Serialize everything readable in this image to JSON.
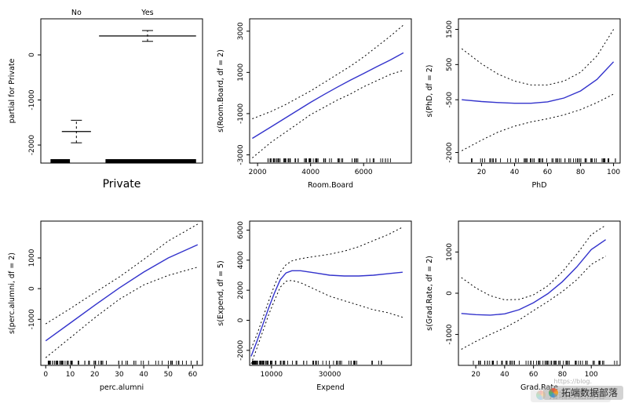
{
  "page": {
    "background": "#ffffff"
  },
  "colors": {
    "fit_line": "#3333cc",
    "band_line": "#000000",
    "axis": "#000000"
  },
  "watermark": {
    "text": "拓端数据部落",
    "text_shadow": "拓端数据部落",
    "url": "https://blog."
  },
  "chart_data": [
    {
      "id": "private",
      "type": "factor",
      "title": "",
      "xlabel": "Private",
      "ylabel": "partial for Private",
      "categories": [
        "No",
        "Yes"
      ],
      "ylim": [
        -2400,
        800
      ],
      "yticks": [
        0,
        -1000,
        -2000
      ],
      "groups": [
        {
          "label": "No",
          "value": -1700,
          "ci_low": -1950,
          "ci_high": -1450,
          "x_center": 0.22,
          "half_width": 0.09
        },
        {
          "label": "Yes",
          "value": 420,
          "ci_low": 300,
          "ci_high": 540,
          "x_center": 0.66,
          "half_width": 0.3
        }
      ],
      "bottom_bars": [
        {
          "x0": 0.06,
          "x1": 0.18
        },
        {
          "x0": 0.4,
          "x1": 0.96
        }
      ]
    },
    {
      "id": "room-board",
      "type": "smooth",
      "xlabel": "Room.Board",
      "ylabel": "s(Room.Board, df = 2)",
      "xlim": [
        1700,
        7800
      ],
      "xticks": [
        2000,
        4000,
        6000
      ],
      "ylim": [
        -3400,
        3600
      ],
      "yticks": [
        -3000,
        -1000,
        1000,
        3000
      ],
      "fit": [
        [
          1800,
          -2200
        ],
        [
          2500,
          -1650
        ],
        [
          3000,
          -1250
        ],
        [
          3500,
          -850
        ],
        [
          4000,
          -450
        ],
        [
          4500,
          -80
        ],
        [
          5000,
          280
        ],
        [
          5500,
          620
        ],
        [
          6000,
          950
        ],
        [
          6500,
          1280
        ],
        [
          7000,
          1600
        ],
        [
          7500,
          1950
        ]
      ],
      "upper": [
        [
          1800,
          -1250
        ],
        [
          2500,
          -900
        ],
        [
          3000,
          -600
        ],
        [
          3500,
          -250
        ],
        [
          4000,
          100
        ],
        [
          4500,
          500
        ],
        [
          5000,
          900
        ],
        [
          5500,
          1300
        ],
        [
          6000,
          1750
        ],
        [
          6500,
          2250
        ],
        [
          7000,
          2750
        ],
        [
          7500,
          3300
        ]
      ],
      "lower": [
        [
          1800,
          -3150
        ],
        [
          2500,
          -2400
        ],
        [
          3000,
          -1950
        ],
        [
          3500,
          -1500
        ],
        [
          4000,
          -1050
        ],
        [
          4500,
          -700
        ],
        [
          5000,
          -350
        ],
        [
          5500,
          -50
        ],
        [
          6000,
          300
        ],
        [
          6500,
          600
        ],
        [
          7000,
          900
        ],
        [
          7500,
          1100
        ]
      ],
      "rug": {
        "min": 2300,
        "max": 7100,
        "count": 75,
        "seed": 7,
        "bias": 1.3
      }
    },
    {
      "id": "phd",
      "type": "smooth",
      "xlabel": "PhD",
      "ylabel": "s(PhD, df = 2)",
      "xlim": [
        6,
        104
      ],
      "xticks": [
        20,
        40,
        60,
        80,
        100
      ],
      "ylim": [
        -2300,
        1800
      ],
      "yticks": [
        -2000,
        -500,
        500,
        1500
      ],
      "fit": [
        [
          8,
          -500
        ],
        [
          20,
          -550
        ],
        [
          30,
          -580
        ],
        [
          40,
          -600
        ],
        [
          50,
          -600
        ],
        [
          60,
          -560
        ],
        [
          70,
          -450
        ],
        [
          80,
          -250
        ],
        [
          90,
          80
        ],
        [
          100,
          580
        ]
      ],
      "upper": [
        [
          8,
          950
        ],
        [
          20,
          520
        ],
        [
          30,
          230
        ],
        [
          40,
          30
        ],
        [
          50,
          -80
        ],
        [
          60,
          -80
        ],
        [
          70,
          30
        ],
        [
          80,
          280
        ],
        [
          90,
          750
        ],
        [
          100,
          1500
        ]
      ],
      "lower": [
        [
          8,
          -1950
        ],
        [
          20,
          -1650
        ],
        [
          30,
          -1420
        ],
        [
          40,
          -1250
        ],
        [
          50,
          -1130
        ],
        [
          60,
          -1040
        ],
        [
          70,
          -930
        ],
        [
          80,
          -780
        ],
        [
          90,
          -580
        ],
        [
          100,
          -340
        ]
      ],
      "rug": {
        "min": 12,
        "max": 103,
        "count": 75,
        "seed": 13,
        "bias": 0.8
      }
    },
    {
      "id": "perc-alumni",
      "type": "smooth",
      "xlabel": "perc.alumni",
      "ylabel": "s(perc.alumni, df = 2)",
      "xlim": [
        -2,
        64
      ],
      "xticks": [
        0,
        10,
        20,
        30,
        40,
        50,
        60
      ],
      "ylim": [
        -2500,
        2200
      ],
      "yticks": [
        -1000,
        0,
        1000
      ],
      "fit": [
        [
          0,
          -1700
        ],
        [
          10,
          -1120
        ],
        [
          20,
          -540
        ],
        [
          30,
          20
        ],
        [
          40,
          540
        ],
        [
          50,
          1000
        ],
        [
          62,
          1430
        ]
      ],
      "upper": [
        [
          0,
          -1150
        ],
        [
          10,
          -650
        ],
        [
          20,
          -130
        ],
        [
          30,
          380
        ],
        [
          40,
          950
        ],
        [
          50,
          1550
        ],
        [
          62,
          2100
        ]
      ],
      "lower": [
        [
          0,
          -2250
        ],
        [
          10,
          -1600
        ],
        [
          20,
          -950
        ],
        [
          30,
          -350
        ],
        [
          40,
          120
        ],
        [
          50,
          430
        ],
        [
          62,
          700
        ]
      ],
      "rug": {
        "min": 1,
        "max": 62,
        "count": 75,
        "seed": 21,
        "bias": 1.5
      }
    },
    {
      "id": "expend",
      "type": "smooth",
      "xlabel": "Expend",
      "ylabel": "s(Expend, df = 5)",
      "xlim": [
        2500,
        58000
      ],
      "xticks": [
        10000,
        30000
      ],
      "ylim": [
        -3000,
        6600
      ],
      "yticks": [
        -2000,
        0,
        2000,
        4000,
        6000
      ],
      "fit": [
        [
          3000,
          -2400
        ],
        [
          5000,
          -1400
        ],
        [
          7000,
          -300
        ],
        [
          9000,
          800
        ],
        [
          11000,
          1800
        ],
        [
          13000,
          2700
        ],
        [
          15000,
          3150
        ],
        [
          17000,
          3300
        ],
        [
          20000,
          3300
        ],
        [
          25000,
          3150
        ],
        [
          30000,
          3000
        ],
        [
          35000,
          2950
        ],
        [
          40000,
          2950
        ],
        [
          45000,
          3000
        ],
        [
          50000,
          3100
        ],
        [
          55000,
          3200
        ]
      ],
      "upper": [
        [
          3000,
          -1900
        ],
        [
          5000,
          -950
        ],
        [
          7000,
          150
        ],
        [
          9000,
          1250
        ],
        [
          11000,
          2300
        ],
        [
          13000,
          3200
        ],
        [
          15000,
          3700
        ],
        [
          17000,
          3950
        ],
        [
          20000,
          4100
        ],
        [
          25000,
          4250
        ],
        [
          30000,
          4400
        ],
        [
          35000,
          4600
        ],
        [
          40000,
          4900
        ],
        [
          45000,
          5300
        ],
        [
          50000,
          5700
        ],
        [
          55000,
          6200
        ]
      ],
      "lower": [
        [
          3000,
          -2900
        ],
        [
          5000,
          -1850
        ],
        [
          7000,
          -750
        ],
        [
          9000,
          350
        ],
        [
          11000,
          1300
        ],
        [
          13000,
          2200
        ],
        [
          15000,
          2600
        ],
        [
          17000,
          2650
        ],
        [
          20000,
          2500
        ],
        [
          25000,
          2050
        ],
        [
          30000,
          1600
        ],
        [
          35000,
          1300
        ],
        [
          40000,
          1000
        ],
        [
          45000,
          700
        ],
        [
          50000,
          500
        ],
        [
          55000,
          200
        ]
      ],
      "rug": {
        "min": 3500,
        "max": 50000,
        "count": 85,
        "seed": 31,
        "bias": 2.4
      }
    },
    {
      "id": "grad-rate",
      "type": "smooth",
      "xlabel": "Grad.Rate",
      "ylabel": "s(Grad.Rate, df = 2)",
      "xlim": [
        8,
        120
      ],
      "xticks": [
        20,
        40,
        60,
        80,
        100
      ],
      "ylim": [
        -1750,
        1750
      ],
      "yticks": [
        -1000,
        0,
        1000
      ],
      "fit": [
        [
          10,
          -490
        ],
        [
          20,
          -520
        ],
        [
          30,
          -530
        ],
        [
          40,
          -500
        ],
        [
          50,
          -400
        ],
        [
          60,
          -230
        ],
        [
          70,
          -10
        ],
        [
          80,
          280
        ],
        [
          90,
          640
        ],
        [
          100,
          1060
        ],
        [
          110,
          1300
        ]
      ],
      "upper": [
        [
          10,
          380
        ],
        [
          20,
          130
        ],
        [
          30,
          -60
        ],
        [
          40,
          -160
        ],
        [
          50,
          -150
        ],
        [
          60,
          -40
        ],
        [
          70,
          180
        ],
        [
          80,
          520
        ],
        [
          90,
          950
        ],
        [
          100,
          1420
        ],
        [
          110,
          1650
        ]
      ],
      "lower": [
        [
          10,
          -1360
        ],
        [
          20,
          -1170
        ],
        [
          30,
          -1000
        ],
        [
          40,
          -840
        ],
        [
          50,
          -650
        ],
        [
          60,
          -420
        ],
        [
          70,
          -200
        ],
        [
          80,
          40
        ],
        [
          90,
          330
        ],
        [
          100,
          700
        ],
        [
          110,
          900
        ]
      ],
      "rug": {
        "min": 15,
        "max": 118,
        "count": 75,
        "seed": 41,
        "bias": 1.0
      }
    }
  ]
}
